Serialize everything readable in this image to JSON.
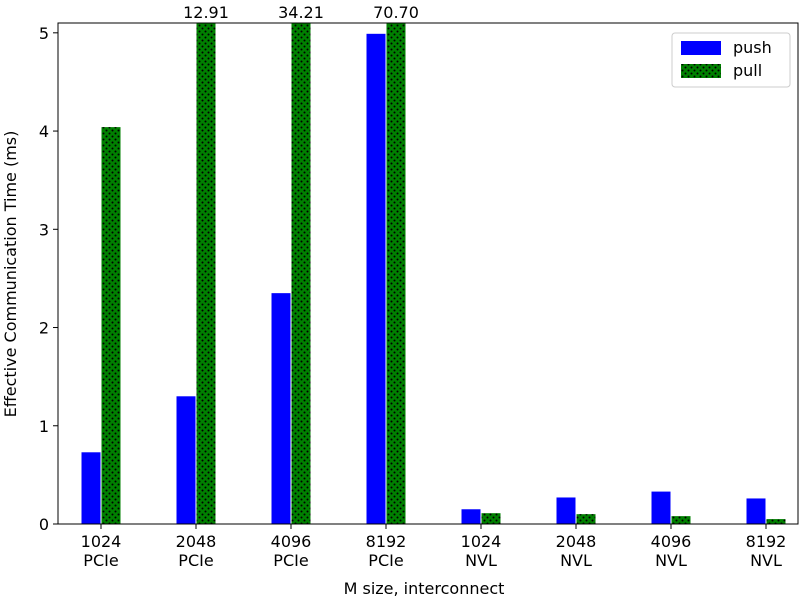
{
  "chart_data": {
    "type": "bar",
    "xlabel": "M size, interconnect",
    "ylabel": "Effective Communication Time (ms)",
    "categories": [
      "1024\nPCIe",
      "2048\nPCIe",
      "4096\nPCIe",
      "8192\nPCIe",
      "1024\nNVL",
      "2048\nNVL",
      "4096\nNVL",
      "8192\nNVL"
    ],
    "series": [
      {
        "name": "push",
        "color": "#0000ff",
        "values": [
          0.73,
          1.3,
          2.35,
          4.99,
          0.15,
          0.27,
          0.33,
          0.26
        ]
      },
      {
        "name": "pull",
        "color": "#008000",
        "hatch": "dots",
        "values": [
          4.04,
          12.91,
          34.21,
          70.7,
          0.11,
          0.1,
          0.08,
          0.05
        ],
        "value_labels": [
          null,
          "12.91",
          "34.21",
          "70.70",
          null,
          null,
          null,
          null
        ]
      }
    ],
    "ylim": [
      0,
      5.1
    ],
    "yticks": [
      0,
      1,
      2,
      3,
      4,
      5
    ],
    "grid": false,
    "legend": "upper right"
  }
}
